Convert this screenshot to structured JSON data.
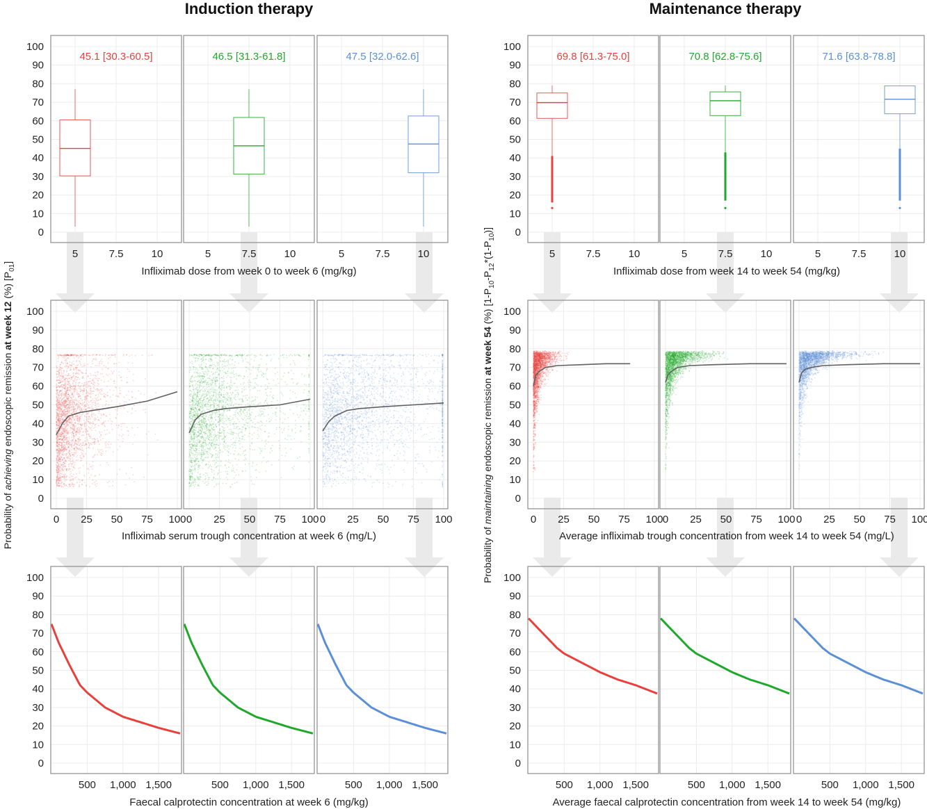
{
  "titles": {
    "left": "Induction therapy",
    "right": "Maintenance therapy"
  },
  "ylabels": {
    "left": {
      "pre": "Probability of ",
      "italic": "achieving",
      "mid": " endoscopic remission ",
      "bold": "at week 12",
      "post": " (%) [P",
      "sub": "01",
      "end": "]"
    },
    "right": {
      "pre": "Probability of ",
      "italic": "maintaining",
      "mid": " endoscopic remission ",
      "bold": "at week 54",
      "post": " (%) [1-P",
      "sub1": "10",
      "p2": "-P",
      "sub2": "12",
      "p3": "*(1-P",
      "sub3": "10",
      "end": ")]"
    }
  },
  "colors": {
    "red": "#e8403c",
    "green": "#1fa82b",
    "blue": "#5b8fd6",
    "curve": "#606060",
    "arrow": "#e9eae9"
  },
  "doses": [
    "5",
    "7.5",
    "10"
  ],
  "y_ticks": [
    "0",
    "10",
    "20",
    "30",
    "40",
    "50",
    "60",
    "70",
    "80",
    "90",
    "100"
  ],
  "induction": {
    "box_xlabel": "Infliximab dose from week 0 to week 6 (mg/kg)",
    "box_xticks": [
      "5",
      "7.5",
      "10"
    ],
    "stats": [
      "45.1 [30.3-60.5]",
      "46.5 [31.3-61.8]",
      "47.5 [32.0-62.6]"
    ],
    "scatter_xlabel": "Infliximab serum trough concentration at week 6 (mg/L)",
    "scatter_xticks": [
      "0",
      "25",
      "50",
      "75",
      "100"
    ],
    "fc_xlabel": "Faecal calprotectin concentration at week 6 (mg/kg)",
    "fc_xticks": [
      "500",
      "1,000",
      "1,500"
    ]
  },
  "maintenance": {
    "box_xlabel": "Infliximab dose from week 14 to week 54 (mg/kg)",
    "box_xticks": [
      "5",
      "7.5",
      "10"
    ],
    "stats": [
      "69.8 [61.3-75.0]",
      "70.8 [62.8-75.6]",
      "71.6 [63.8-78.8]"
    ],
    "scatter_xlabel": "Average infliximab trough concentration from week 14 to week 54 (mg/L)",
    "scatter_xticks": [
      "0",
      "25",
      "50",
      "75",
      "100"
    ],
    "fc_xlabel": "Average faecal calprotectin concentration from week 14 to week 54 (mg/kg)",
    "fc_xticks": [
      "500",
      "1,000",
      "1,500"
    ]
  },
  "chart_data": [
    {
      "type": "box",
      "group": "induction",
      "xlabel": "Infliximab dose from week 0 to week 6 (mg/kg)",
      "ylim": [
        0,
        100
      ],
      "boxes": [
        {
          "dose": 5,
          "color": "red",
          "whisker_low": 3,
          "q1": 30.3,
          "median": 45.1,
          "q3": 60.5,
          "whisker_high": 77
        },
        {
          "dose": 7.5,
          "color": "green",
          "whisker_low": 3,
          "q1": 31.3,
          "median": 46.5,
          "q3": 61.8,
          "whisker_high": 77
        },
        {
          "dose": 10,
          "color": "blue",
          "whisker_low": 3,
          "q1": 32.0,
          "median": 47.5,
          "q3": 62.6,
          "whisker_high": 77
        }
      ]
    },
    {
      "type": "box",
      "group": "maintenance",
      "xlabel": "Infliximab dose from week 14 to week 54 (mg/kg)",
      "ylim": [
        0,
        100
      ],
      "boxes": [
        {
          "dose": 5,
          "color": "red",
          "whisker_low": 41,
          "q1": 61.3,
          "median": 69.8,
          "q3": 75.0,
          "whisker_high": 79,
          "outliers_from": 16,
          "outliers_to": 41,
          "min_outlier": 13
        },
        {
          "dose": 7.5,
          "color": "green",
          "whisker_low": 43,
          "q1": 62.8,
          "median": 70.8,
          "q3": 75.6,
          "whisker_high": 79,
          "outliers_from": 17,
          "outliers_to": 43,
          "min_outlier": 13
        },
        {
          "dose": 10,
          "color": "blue",
          "whisker_low": 45,
          "q1": 63.8,
          "median": 71.6,
          "q3": 78.8,
          "whisker_high": 79,
          "outliers_from": 17,
          "outliers_to": 45,
          "min_outlier": 13
        }
      ]
    },
    {
      "type": "scatter",
      "group": "induction",
      "xlabel": "Infliximab serum trough concentration at week 6 (mg/L)",
      "xlim": [
        0,
        100
      ],
      "ylim": [
        0,
        100
      ],
      "y_cap": 77,
      "fit": [
        {
          "color": "red",
          "x": [
            0,
            5,
            10,
            20,
            30,
            50,
            75,
            100
          ],
          "y": [
            34,
            40,
            44,
            46,
            47,
            49,
            52,
            57
          ]
        },
        {
          "color": "green",
          "x": [
            0,
            5,
            10,
            20,
            30,
            50,
            75,
            100
          ],
          "y": [
            35,
            42,
            45,
            47,
            48,
            49,
            50,
            53
          ]
        },
        {
          "color": "blue",
          "x": [
            0,
            5,
            10,
            20,
            30,
            50,
            75,
            100
          ],
          "y": [
            36,
            41,
            44,
            47,
            48,
            49,
            50,
            51
          ]
        }
      ]
    },
    {
      "type": "scatter",
      "group": "maintenance",
      "xlabel": "Average infliximab trough concentration from week 14 to week 54 (mg/L)",
      "xlim": [
        0,
        100
      ],
      "ylim": [
        0,
        100
      ],
      "y_cap": 79,
      "fit": [
        {
          "color": "red",
          "x": [
            0,
            2,
            5,
            10,
            20,
            40,
            60,
            80
          ],
          "y": [
            60,
            66,
            68,
            70,
            71,
            71.5,
            72,
            72
          ]
        },
        {
          "color": "green",
          "x": [
            0,
            2,
            5,
            10,
            20,
            40,
            70,
            100
          ],
          "y": [
            62,
            66,
            68,
            70,
            71,
            71.5,
            72,
            72
          ]
        },
        {
          "color": "blue",
          "x": [
            0,
            2,
            5,
            10,
            20,
            40,
            70,
            100
          ],
          "y": [
            62,
            67,
            69,
            70,
            71,
            71.5,
            72,
            72
          ]
        }
      ]
    },
    {
      "type": "line",
      "group": "induction",
      "xlabel": "Faecal calprotectin concentration at week 6 (mg/kg)",
      "ylim": [
        0,
        100
      ],
      "x": [
        0,
        100,
        250,
        400,
        500,
        750,
        1000,
        1250,
        1500,
        1800
      ],
      "series": [
        {
          "color": "red",
          "values": [
            75,
            65,
            53,
            42,
            38,
            30,
            25,
            22,
            19,
            16
          ]
        },
        {
          "color": "green",
          "values": [
            75,
            65,
            53,
            42,
            38,
            30,
            25,
            22,
            19,
            16
          ]
        },
        {
          "color": "blue",
          "values": [
            75,
            65,
            53,
            42,
            38,
            30,
            25,
            22,
            19,
            16
          ]
        }
      ]
    },
    {
      "type": "line",
      "group": "maintenance",
      "xlabel": "Average faecal calprotectin concentration from week 14 to week 54 (mg/kg)",
      "ylim": [
        0,
        100
      ],
      "x": [
        0,
        100,
        250,
        400,
        500,
        750,
        1000,
        1250,
        1500,
        1800
      ],
      "series": [
        {
          "color": "red",
          "values": [
            78,
            74,
            68,
            62,
            59,
            54,
            49,
            45,
            42,
            37.5
          ]
        },
        {
          "color": "green",
          "values": [
            78,
            74,
            68,
            62,
            59,
            54,
            49,
            45,
            42,
            37.5
          ]
        },
        {
          "color": "blue",
          "values": [
            78,
            74,
            68,
            62,
            59,
            54,
            49,
            45,
            42,
            37.5
          ]
        }
      ]
    }
  ]
}
